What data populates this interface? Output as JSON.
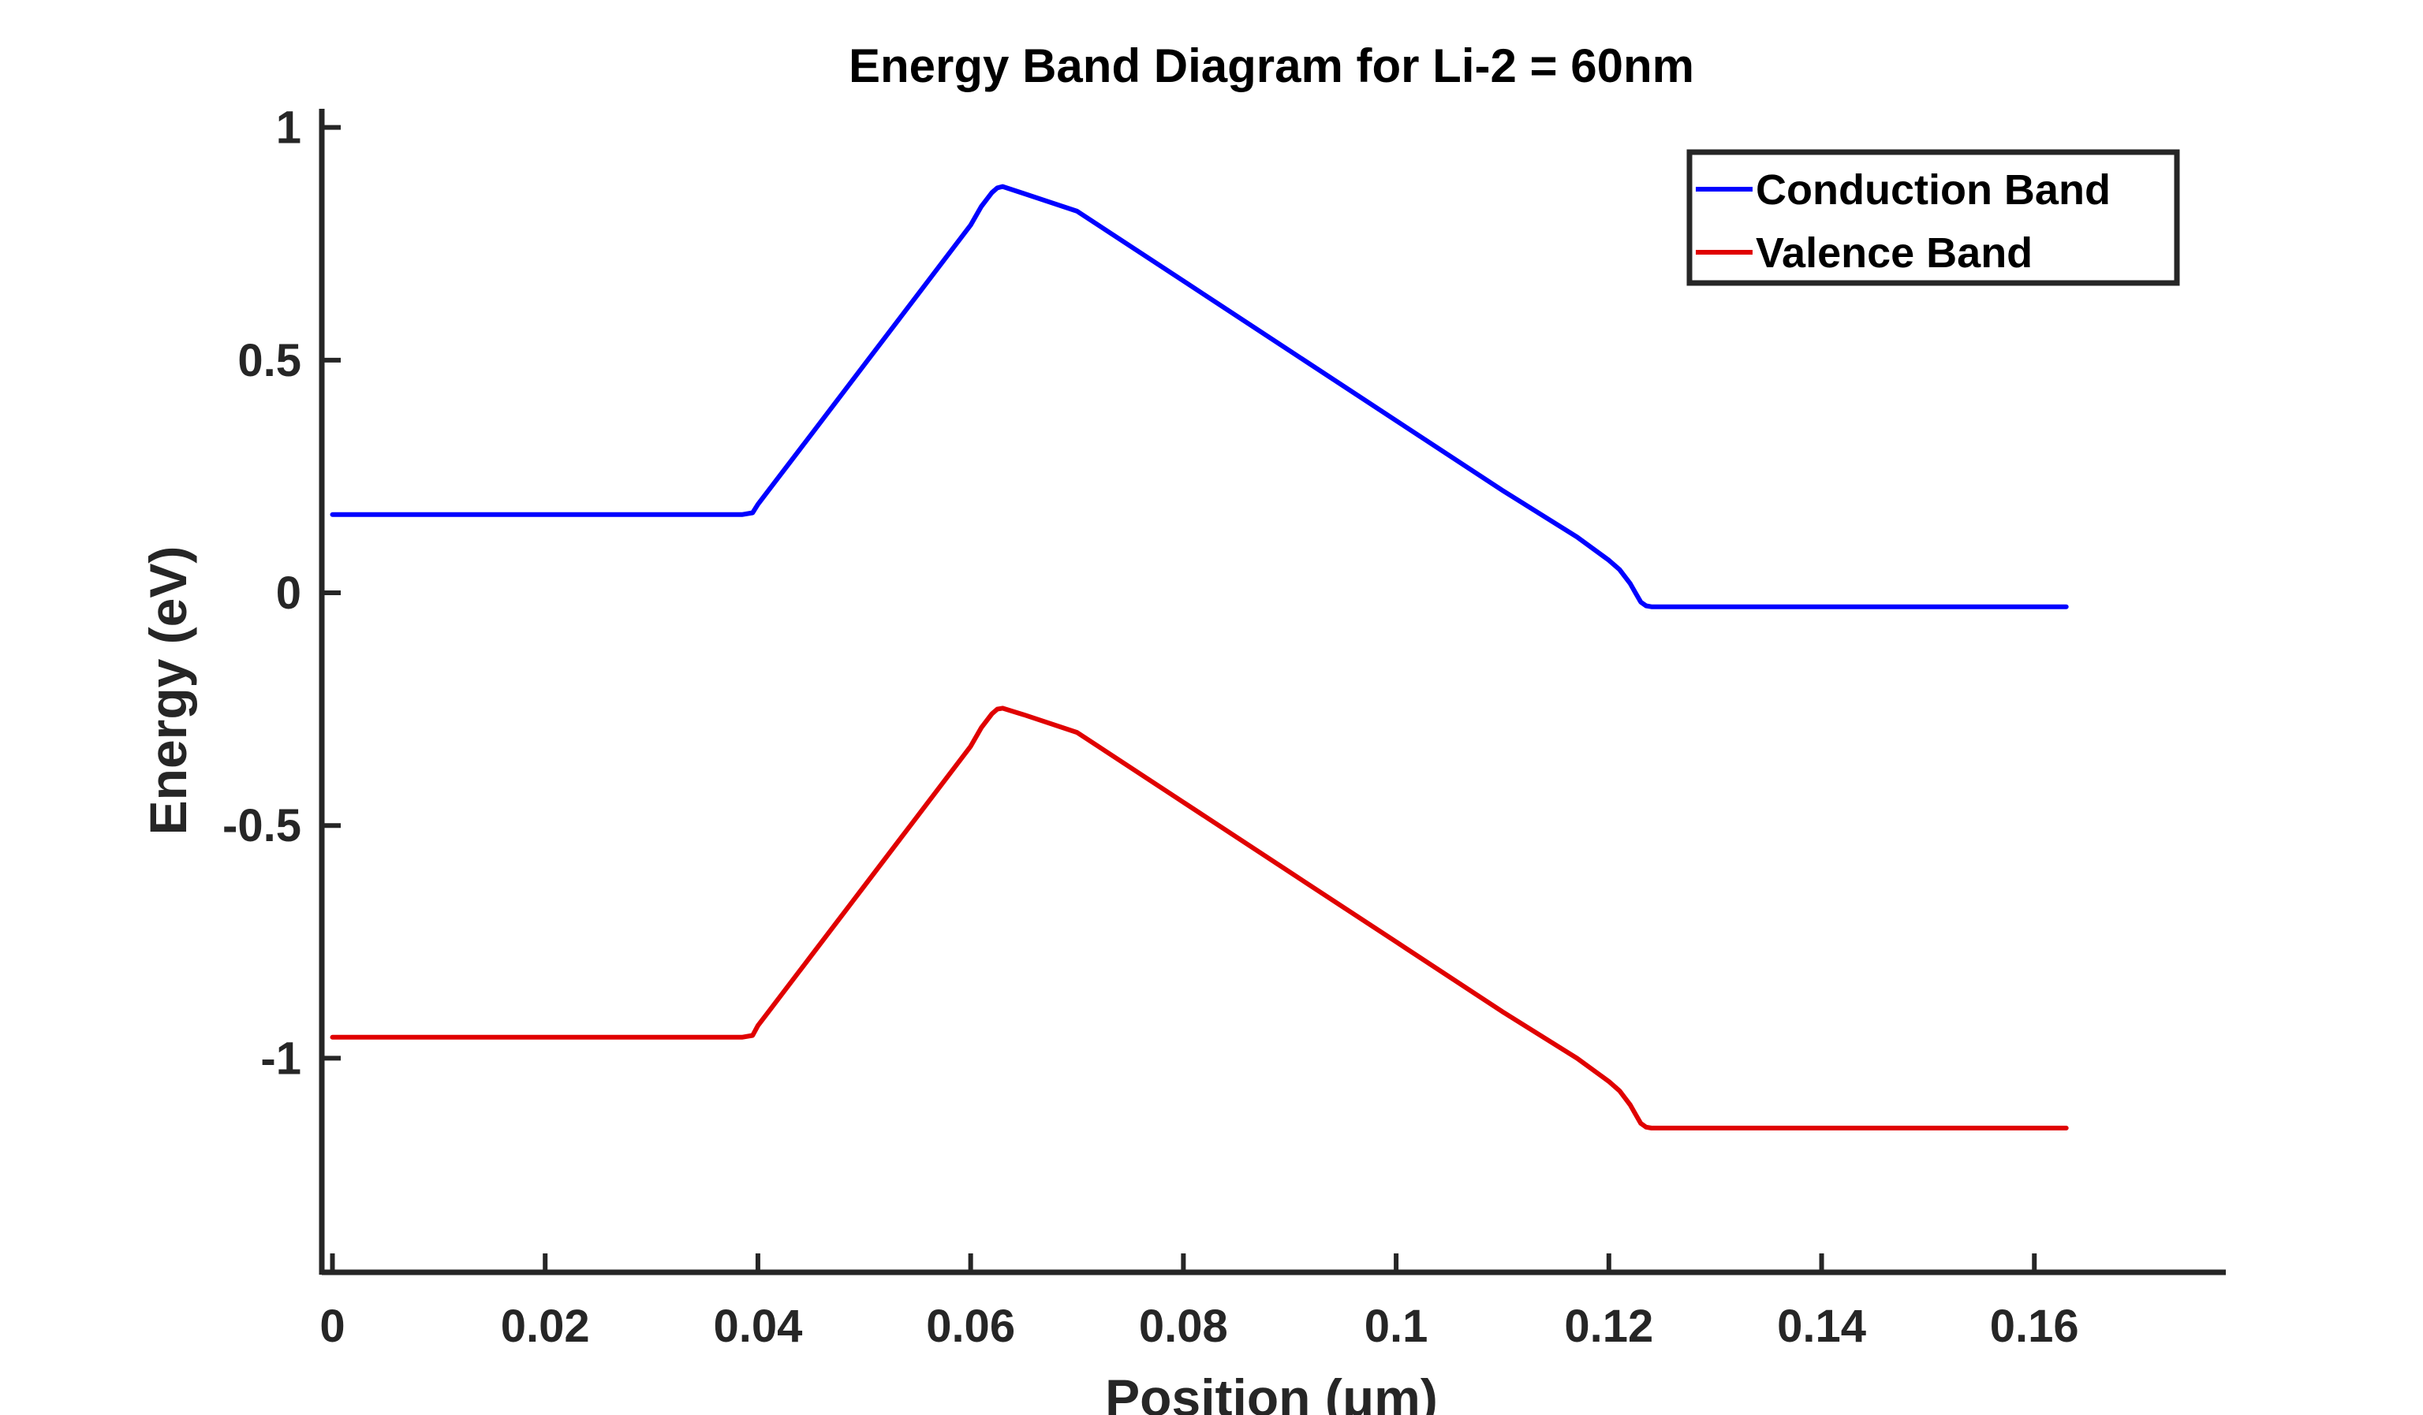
{
  "chart_data": {
    "type": "line",
    "title": "Energy Band Diagram for Li-2 = 60nm",
    "xlabel": "Position (μm)",
    "ylabel": "Energy (eV)",
    "xlim": [
      -0.001,
      0.178
    ],
    "ylim": [
      -1.46,
      1.04
    ],
    "xticks": [
      0,
      0.02,
      0.04,
      0.06,
      0.08,
      0.1,
      0.12,
      0.14,
      0.16
    ],
    "xtick_labels": [
      "0",
      "0.02",
      "0.04",
      "0.06",
      "0.08",
      "0.1",
      "0.12",
      "0.14",
      "0.16"
    ],
    "yticks": [
      1,
      0.5,
      0,
      -0.5,
      -1
    ],
    "ytick_labels": [
      "1",
      "0.5",
      "0",
      "-0.5",
      "-1"
    ],
    "grid": false,
    "legend": "top-right",
    "series": [
      {
        "name": "Conduction Band",
        "color": "#0000FF",
        "x": [
          0,
          0.0385,
          0.0395,
          0.04,
          0.041,
          0.045,
          0.05,
          0.055,
          0.06,
          0.061,
          0.062,
          0.0625,
          0.063,
          0.065,
          0.07,
          0.08,
          0.09,
          0.1,
          0.11,
          0.117,
          0.12,
          0.121,
          0.122,
          0.1225,
          0.123,
          0.1235,
          0.124,
          0.125,
          0.13,
          0.14,
          0.15,
          0.163
        ],
        "y": [
          0.168,
          0.168,
          0.172,
          0.19,
          0.22,
          0.34,
          0.49,
          0.64,
          0.79,
          0.83,
          0.86,
          0.87,
          0.873,
          0.858,
          0.82,
          0.67,
          0.52,
          0.37,
          0.22,
          0.12,
          0.07,
          0.05,
          0.02,
          0.0,
          -0.02,
          -0.028,
          -0.03,
          -0.03,
          -0.03,
          -0.03,
          -0.03,
          -0.03
        ]
      },
      {
        "name": "Valence Band",
        "color": "#E00000",
        "x": [
          0,
          0.0385,
          0.0395,
          0.04,
          0.041,
          0.045,
          0.05,
          0.055,
          0.06,
          0.061,
          0.062,
          0.0625,
          0.063,
          0.065,
          0.07,
          0.08,
          0.09,
          0.1,
          0.11,
          0.117,
          0.12,
          0.121,
          0.122,
          0.1225,
          0.123,
          0.1235,
          0.124,
          0.125,
          0.13,
          0.14,
          0.15,
          0.163
        ],
        "y": [
          -0.955,
          -0.955,
          -0.951,
          -0.93,
          -0.9,
          -0.78,
          -0.63,
          -0.48,
          -0.33,
          -0.29,
          -0.26,
          -0.25,
          -0.248,
          -0.262,
          -0.3,
          -0.45,
          -0.6,
          -0.75,
          -0.9,
          -1.0,
          -1.05,
          -1.07,
          -1.1,
          -1.12,
          -1.14,
          -1.148,
          -1.15,
          -1.15,
          -1.15,
          -1.15,
          -1.15,
          -1.15
        ]
      }
    ]
  }
}
